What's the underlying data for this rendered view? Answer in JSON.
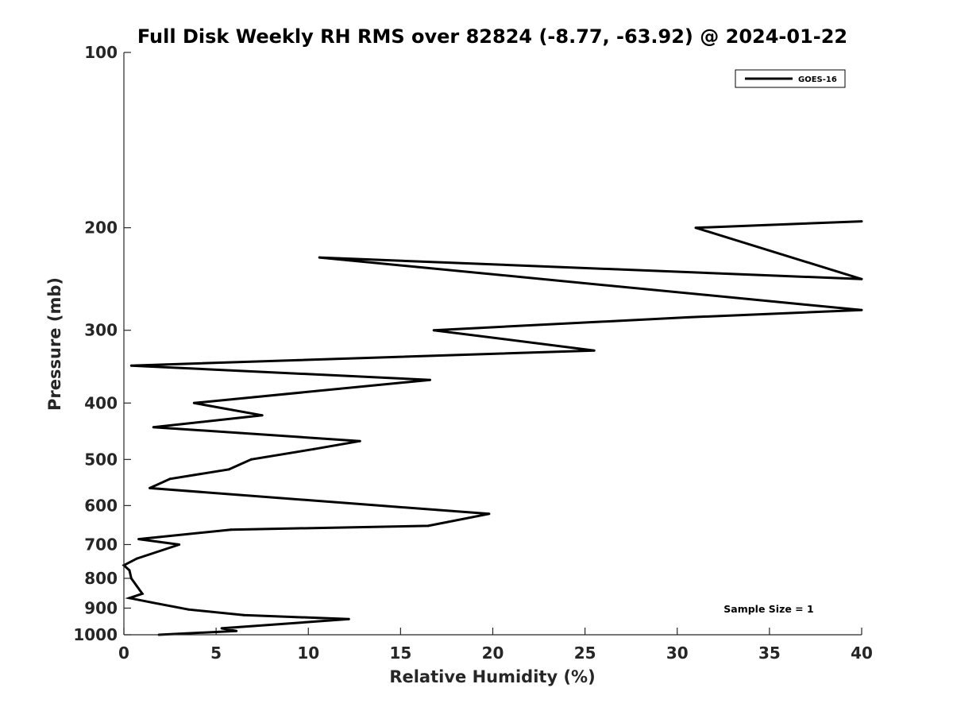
{
  "chart_data": {
    "type": "line",
    "title": "Full Disk Weekly RH RMS over 82824 (-8.77, -63.92) @ 2024-01-22",
    "xlabel": "Relative Humidity (%)",
    "ylabel": "Pressure (mb)",
    "xlim": [
      0,
      40
    ],
    "ylim": [
      100,
      1000
    ],
    "yscale": "log",
    "y_reversed": true,
    "grid": false,
    "x_ticks": [
      "0",
      "5",
      "10",
      "15",
      "20",
      "25",
      "30",
      "35",
      "40"
    ],
    "y_ticks": [
      "100",
      "200",
      "300",
      "400",
      "500",
      "600",
      "700",
      "800",
      "900",
      "1000"
    ],
    "legend": {
      "position": "top-right",
      "entries": [
        "GOES-16"
      ]
    },
    "annotation": "Sample Size = 1",
    "line_color": "#000000",
    "series": [
      {
        "name": "GOES-16",
        "x": [
          1.9,
          6.1,
          5.3,
          12.2,
          6.5,
          3.5,
          1.5,
          0.3,
          1.0,
          0.7,
          0.4,
          0.3,
          0.0,
          0.7,
          3.0,
          0.8,
          5.8,
          16.5,
          19.8,
          1.4,
          2.5,
          5.7,
          6.9,
          10.3,
          12.8,
          1.6,
          7.5,
          3.8,
          16.6,
          0.4,
          25.5,
          16.8,
          30.6,
          40.0,
          10.6,
          40.0,
          31.0,
          40.0
        ],
        "y": [
          1000,
          985,
          975,
          940,
          925,
          905,
          880,
          865,
          850,
          825,
          800,
          775,
          760,
          740,
          700,
          685,
          660,
          650,
          620,
          560,
          540,
          520,
          500,
          480,
          465,
          440,
          420,
          400,
          365,
          345,
          325,
          300,
          285,
          277,
          225,
          245,
          200,
          195
        ]
      }
    ]
  }
}
